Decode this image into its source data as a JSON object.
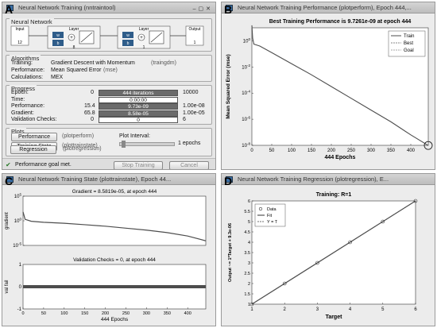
{
  "labels": {
    "a": "A",
    "b": "B",
    "c": "C",
    "d": "D"
  },
  "colors": {
    "curve": "#4d4d4d",
    "progress_fill": "#6b6b6b",
    "goal_marker": "#222222"
  },
  "panelA": {
    "title": "Neural Network Training (nntraintool)",
    "section_nn": "Neural Network",
    "diagram": {
      "input": "Input",
      "input_n": "12",
      "layer1": "Layer",
      "layer1_n": "8",
      "layer2": "Layer",
      "layer2_n": "1",
      "output": "Output",
      "output_n": "1",
      "w": "w",
      "b": "b"
    },
    "section_alg": "Algorithms",
    "algorithms": [
      {
        "label": "Training:",
        "value": "Gradient Descent with Momentum",
        "fn": "(traingdm)"
      },
      {
        "label": "Performance:",
        "value": "Mean Squared Error",
        "fn": "(mse)"
      },
      {
        "label": "Calculations:",
        "value": "MEX",
        "fn": ""
      }
    ],
    "section_prog": "Progress",
    "progress": [
      {
        "label": "Epoch:",
        "start": "0",
        "value": "444 iterations",
        "end": "10000",
        "fill": 1.0
      },
      {
        "label": "Time:",
        "start": "",
        "value": "0:00:00",
        "end": "",
        "fill": 0.0
      },
      {
        "label": "Performance:",
        "start": "15.4",
        "value": "9.73e-09",
        "end": "1.00e-08",
        "fill": 1.0
      },
      {
        "label": "Gradient:",
        "start": "65.8",
        "value": "8.58e-05",
        "end": "1.00e-05",
        "fill": 1.0
      },
      {
        "label": "Validation Checks:",
        "start": "0",
        "value": "0",
        "end": "6",
        "fill": 0.0
      }
    ],
    "section_plots": "Plots",
    "plots": [
      {
        "button": "Performance",
        "fn": "(plotperform)"
      },
      {
        "button": "Training State",
        "fn": "(plottrainstate)"
      },
      {
        "button": "Regression",
        "fn": "(plotregression)"
      }
    ],
    "plot_interval_label": "Plot Interval:",
    "plot_interval_value": "1 epochs",
    "status": "Performance goal met.",
    "stop_button": "Stop Training",
    "cancel_button": "Cancel"
  },
  "panelB": {
    "title": "Neural Network Training Performance (plotperform), Epoch 444,...",
    "chart_data": {
      "type": "line",
      "title": "Best Training Performance is 9.7261e-09 at epoch 444",
      "xlabel": "444 Epochs",
      "ylabel": "Mean Squared Error (mse)",
      "xlim": [
        0,
        444
      ],
      "ylim_exp": [
        -8,
        1
      ],
      "y_scale": "log",
      "xticks": [
        "0",
        "50",
        "100",
        "150",
        "200",
        "250",
        "300",
        "350",
        "400"
      ],
      "yticks": [
        "10^0",
        "10^-2",
        "10^-4",
        "10^-6",
        "10^-8"
      ],
      "legend": [
        "Train",
        "Best",
        "Goal"
      ],
      "legend_position": "top-right",
      "series": [
        {
          "name": "Train",
          "x": [
            0,
            2,
            5,
            10,
            20,
            50,
            100,
            150,
            200,
            250,
            300,
            350,
            400,
            444
          ],
          "log10_y": [
            1.19,
            0.2,
            -0.25,
            -0.3,
            -0.4,
            -0.9,
            -1.75,
            -2.6,
            -3.5,
            -4.4,
            -5.3,
            -6.2,
            -7.2,
            -8.01
          ]
        }
      ],
      "best_point": {
        "x": 444,
        "log10_y": -8.01
      }
    }
  },
  "panelC": {
    "title": "Neural Network Training State (plottrainstate), Epoch 44...",
    "chart_data": [
      {
        "type": "line",
        "title": "Gradient = 8.5819e-05, at epoch 444",
        "ylabel": "gradient",
        "xlim": [
          0,
          444
        ],
        "y_scale": "log",
        "yticks": [
          "10^5",
          "10^0",
          "10^-5"
        ],
        "series": [
          {
            "x": [
              0,
              5,
              20,
              50,
              100,
              150,
              200,
              250,
              300,
              350,
              400,
              444
            ],
            "log10_y": [
              1.8,
              0.3,
              -0.1,
              -0.3,
              -0.5,
              -0.8,
              -1.1,
              -1.5,
              -1.9,
              -2.4,
              -3.1,
              -4.07
            ]
          }
        ]
      },
      {
        "type": "scatter",
        "title": "Validation Checks = 0, at epoch 444",
        "ylabel": "val fail",
        "xlabel": "444 Epochs",
        "xlim": [
          0,
          444
        ],
        "ylim": [
          -1,
          1
        ],
        "xticks": [
          "0",
          "50",
          "100",
          "150",
          "200",
          "250",
          "300",
          "350",
          "400"
        ],
        "yticks": [
          "1",
          "0",
          "-1"
        ],
        "series": [
          {
            "x_range": [
              0,
              444
            ],
            "y": 0
          }
        ]
      }
    ]
  },
  "panelD": {
    "title": "Neural Network Training Regression (plotregression), E...",
    "chart_data": {
      "type": "scatter",
      "title": "Training: R=1",
      "xlabel": "Target",
      "ylabel": "Output ~= 1*Target + 9.3e-06",
      "xlim": [
        1,
        6
      ],
      "ylim": [
        1,
        6
      ],
      "xticks": [
        "1",
        "2",
        "3",
        "4",
        "5",
        "6"
      ],
      "yticks": [
        "1",
        "1.5",
        "2",
        "2.5",
        "3",
        "3.5",
        "4",
        "4.5",
        "5",
        "5.5",
        "6"
      ],
      "legend": [
        "Data",
        "Fit",
        "Y = T"
      ],
      "legend_position": "top-left",
      "points": [
        [
          1,
          1
        ],
        [
          2,
          2
        ],
        [
          3,
          3
        ],
        [
          4,
          4
        ],
        [
          5,
          5
        ],
        [
          6,
          6
        ]
      ]
    }
  }
}
